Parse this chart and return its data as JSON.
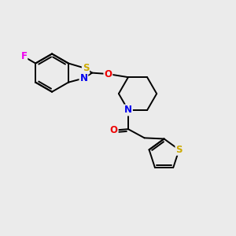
{
  "bg_color": "#ebebeb",
  "atom_colors": {
    "C": "#000000",
    "N": "#0000ee",
    "O": "#ee0000",
    "S": "#ccaa00",
    "F": "#ee00ee"
  },
  "bond_color": "#000000",
  "bond_width": 1.4,
  "figsize": [
    3.0,
    3.0
  ],
  "dpi": 100
}
